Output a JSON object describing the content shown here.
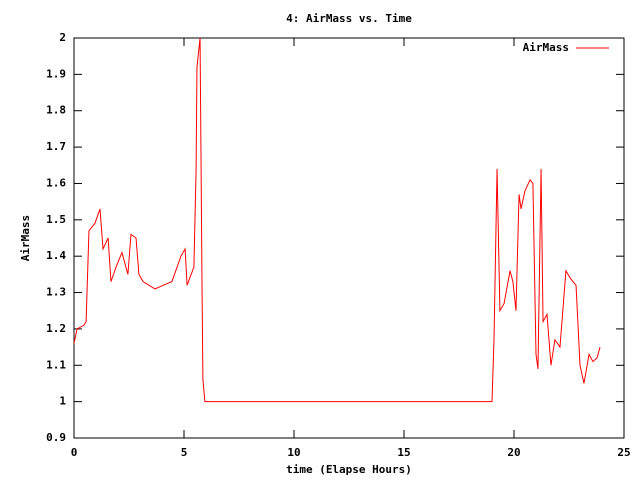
{
  "chart_data": {
    "type": "line",
    "title": "4: AirMass vs. Time",
    "x_label": "time (Elapse Hours)",
    "y_label": "AirMass",
    "xlim": [
      0,
      25
    ],
    "xticks": [
      0,
      5,
      10,
      15,
      20,
      25
    ],
    "ylim": [
      0.9,
      2
    ],
    "yticks": [
      0.9,
      1,
      1.1,
      1.2,
      1.3,
      1.4,
      1.5,
      1.6,
      1.7,
      1.8,
      1.9,
      2
    ],
    "legend": "top-right",
    "x": [
      0,
      0.14,
      0.45,
      0.55,
      0.68,
      0.95,
      1.18,
      1.32,
      1.55,
      1.68,
      1.91,
      2.18,
      2.45,
      2.59,
      2.82,
      2.95,
      3.14,
      3.68,
      4.05,
      4.45,
      4.86,
      5.05,
      5.14,
      5.45,
      5.55,
      5.59,
      5.73,
      5.82,
      5.86,
      5.95,
      19.0,
      19.09,
      19.23,
      19.36,
      19.55,
      19.82,
      19.95,
      20.09,
      20.23,
      20.32,
      20.5,
      20.73,
      20.86,
      21.0,
      21.09,
      21.23,
      21.32,
      21.5,
      21.68,
      21.86,
      22.09,
      22.36,
      22.55,
      22.82,
      23.0,
      23.18,
      23.41,
      23.59,
      23.77,
      23.91
    ],
    "series": [
      {
        "name": "AirMass",
        "color": "#ff0000",
        "values": [
          1.16,
          1.2,
          1.21,
          1.22,
          1.47,
          1.49,
          1.53,
          1.42,
          1.45,
          1.33,
          1.37,
          1.41,
          1.35,
          1.46,
          1.45,
          1.35,
          1.33,
          1.31,
          1.32,
          1.33,
          1.4,
          1.42,
          1.32,
          1.37,
          1.64,
          1.92,
          2.0,
          1.31,
          1.06,
          1.0,
          1.0,
          1.17,
          1.64,
          1.25,
          1.27,
          1.36,
          1.33,
          1.25,
          1.57,
          1.53,
          1.58,
          1.61,
          1.6,
          1.13,
          1.09,
          1.64,
          1.22,
          1.24,
          1.1,
          1.17,
          1.15,
          1.36,
          1.34,
          1.32,
          1.1,
          1.05,
          1.13,
          1.11,
          1.12,
          1.15
        ]
      }
    ]
  }
}
